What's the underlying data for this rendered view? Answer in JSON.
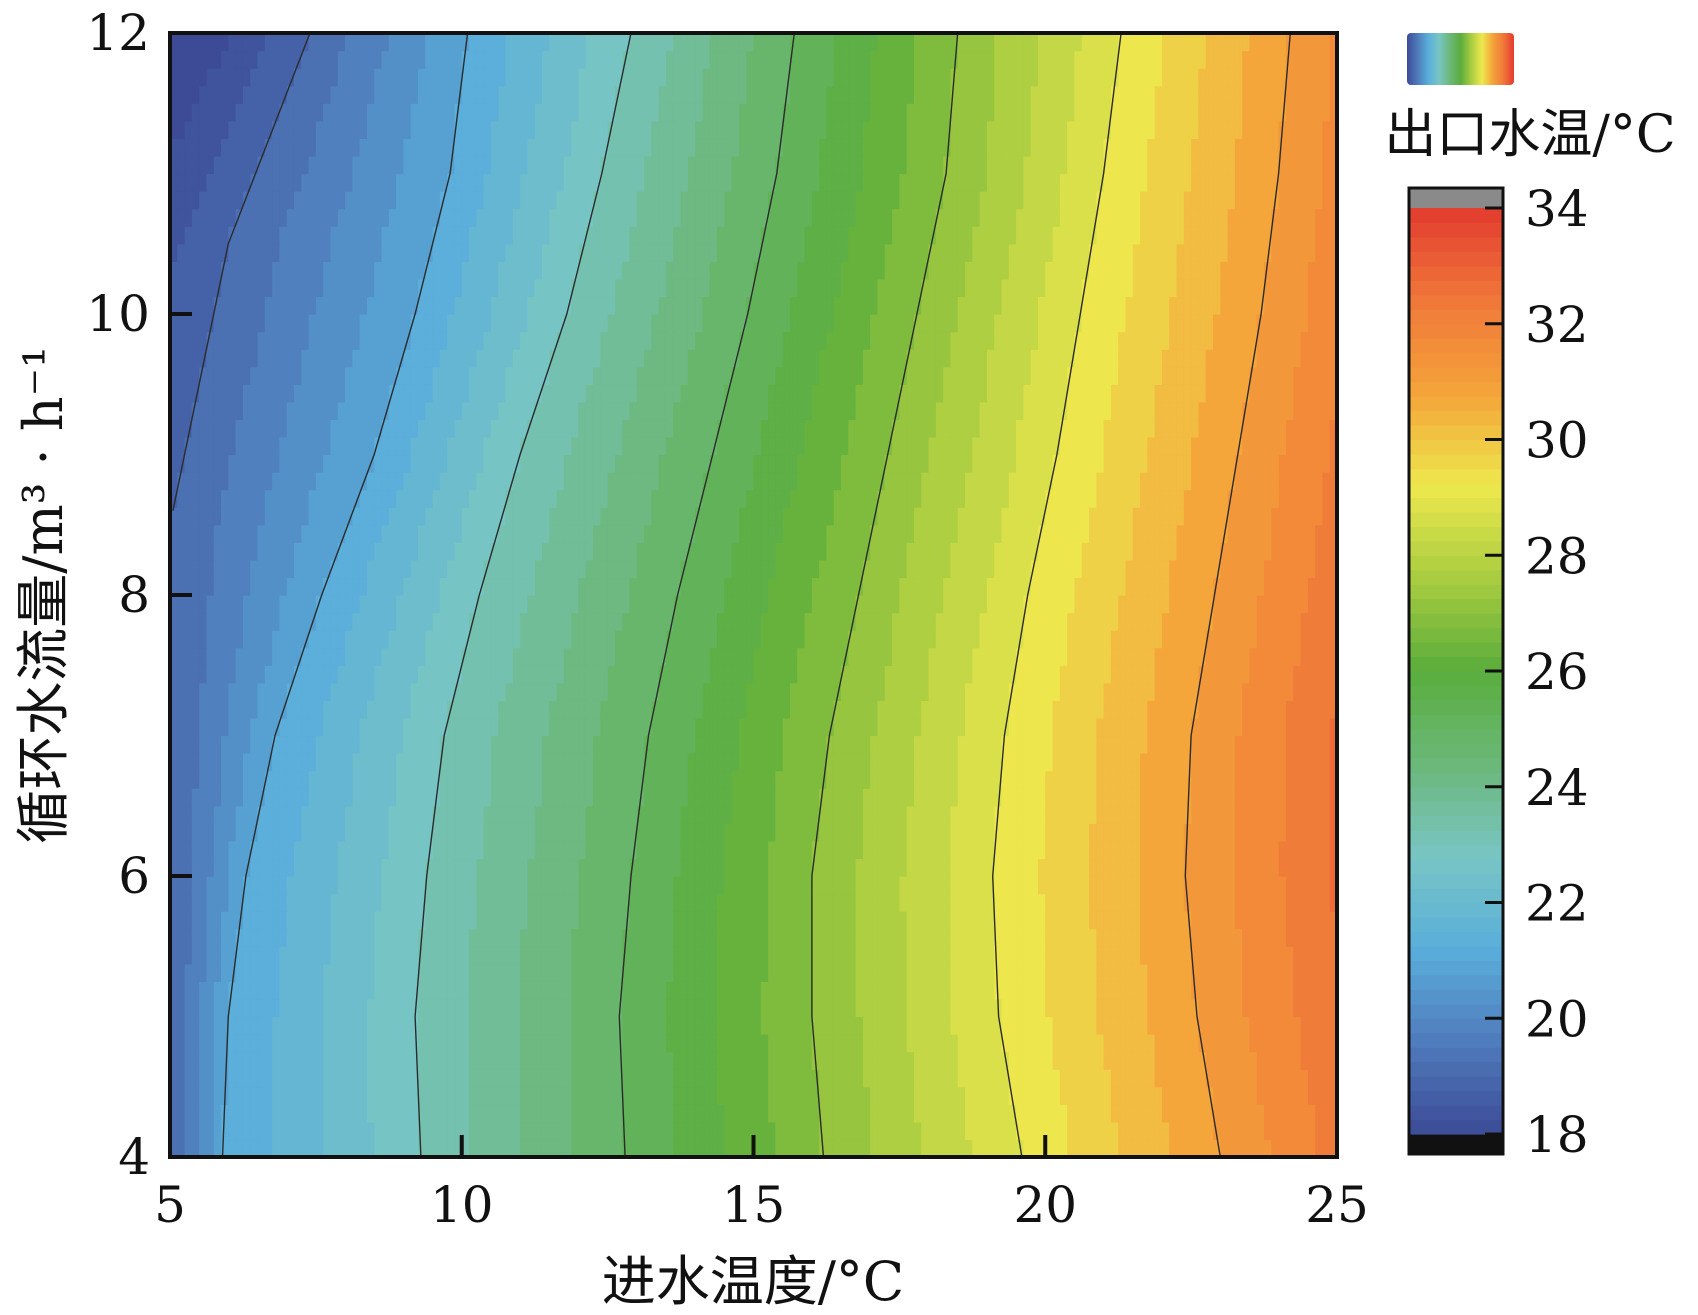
{
  "chart_data": {
    "type": "heatmap",
    "subtype": "filled-contour",
    "xlabel": "进水温度/°C",
    "ylabel": "循环水流量/m³ · h⁻¹",
    "xlim": [
      5,
      25
    ],
    "ylim": [
      4,
      12
    ],
    "x_ticks": [
      5,
      10,
      15,
      20,
      25
    ],
    "y_ticks": [
      4,
      6,
      8,
      10,
      12
    ],
    "x_tick_labels": [
      "5",
      "10",
      "15",
      "20",
      "25"
    ],
    "y_tick_labels": [
      "4",
      "6",
      "8",
      "10",
      "12"
    ],
    "colorbar": {
      "title": "出口水温/°C",
      "range": [
        18,
        34
      ],
      "ticks": [
        18,
        20,
        22,
        24,
        26,
        28,
        30,
        32,
        34
      ],
      "tick_labels": [
        "18",
        "20",
        "22",
        "24",
        "26",
        "28",
        "30",
        "32",
        "34"
      ],
      "legend_swatch": true,
      "colors": [
        "#3d4b97",
        "#4f7bbb",
        "#5aaedb",
        "#78c5c4",
        "#6cb87a",
        "#5aad3c",
        "#a8cc40",
        "#ede84e",
        "#f4a43a",
        "#f0783a",
        "#e33b2e"
      ]
    },
    "contour_lines": [
      {
        "level": 19,
        "points": [
          [
            5.05,
            8.6
          ],
          [
            6.0,
            10.5
          ],
          [
            7.4,
            12.0
          ]
        ]
      },
      {
        "level": 21,
        "points": [
          [
            5.9,
            4.0
          ],
          [
            6.0,
            5.0
          ],
          [
            6.3,
            6.0
          ],
          [
            6.8,
            7.0
          ],
          [
            7.6,
            8.0
          ],
          [
            8.5,
            9.0
          ],
          [
            9.2,
            10.0
          ],
          [
            9.8,
            11.0
          ],
          [
            10.1,
            12.0
          ]
        ]
      },
      {
        "level": 23,
        "points": [
          [
            9.3,
            4.0
          ],
          [
            9.2,
            5.0
          ],
          [
            9.4,
            6.0
          ],
          [
            9.7,
            7.0
          ],
          [
            10.3,
            8.0
          ],
          [
            11.0,
            9.0
          ],
          [
            11.8,
            10.0
          ],
          [
            12.4,
            11.0
          ],
          [
            12.9,
            12.0
          ]
        ]
      },
      {
        "level": 25,
        "points": [
          [
            12.8,
            4.0
          ],
          [
            12.7,
            5.0
          ],
          [
            12.9,
            6.0
          ],
          [
            13.2,
            7.0
          ],
          [
            13.7,
            8.0
          ],
          [
            14.3,
            9.0
          ],
          [
            14.9,
            10.0
          ],
          [
            15.4,
            11.0
          ],
          [
            15.7,
            12.0
          ]
        ]
      },
      {
        "level": 27,
        "points": [
          [
            16.2,
            4.0
          ],
          [
            16.0,
            5.0
          ],
          [
            16.0,
            6.0
          ],
          [
            16.3,
            7.0
          ],
          [
            16.8,
            8.0
          ],
          [
            17.3,
            9.0
          ],
          [
            17.8,
            10.0
          ],
          [
            18.3,
            11.0
          ],
          [
            18.5,
            12.0
          ]
        ]
      },
      {
        "level": 29,
        "points": [
          [
            19.6,
            4.0
          ],
          [
            19.2,
            5.0
          ],
          [
            19.1,
            6.0
          ],
          [
            19.3,
            7.0
          ],
          [
            19.7,
            8.0
          ],
          [
            20.2,
            9.0
          ],
          [
            20.6,
            10.0
          ],
          [
            21.0,
            11.0
          ],
          [
            21.3,
            12.0
          ]
        ]
      },
      {
        "level": 31,
        "points": [
          [
            23.0,
            4.0
          ],
          [
            22.6,
            5.0
          ],
          [
            22.4,
            6.0
          ],
          [
            22.5,
            7.0
          ],
          [
            22.9,
            8.0
          ],
          [
            23.3,
            9.0
          ],
          [
            23.7,
            10.0
          ],
          [
            24.0,
            11.0
          ],
          [
            24.2,
            12.0
          ]
        ]
      }
    ],
    "grid": false,
    "legend_placement": "top-right"
  }
}
